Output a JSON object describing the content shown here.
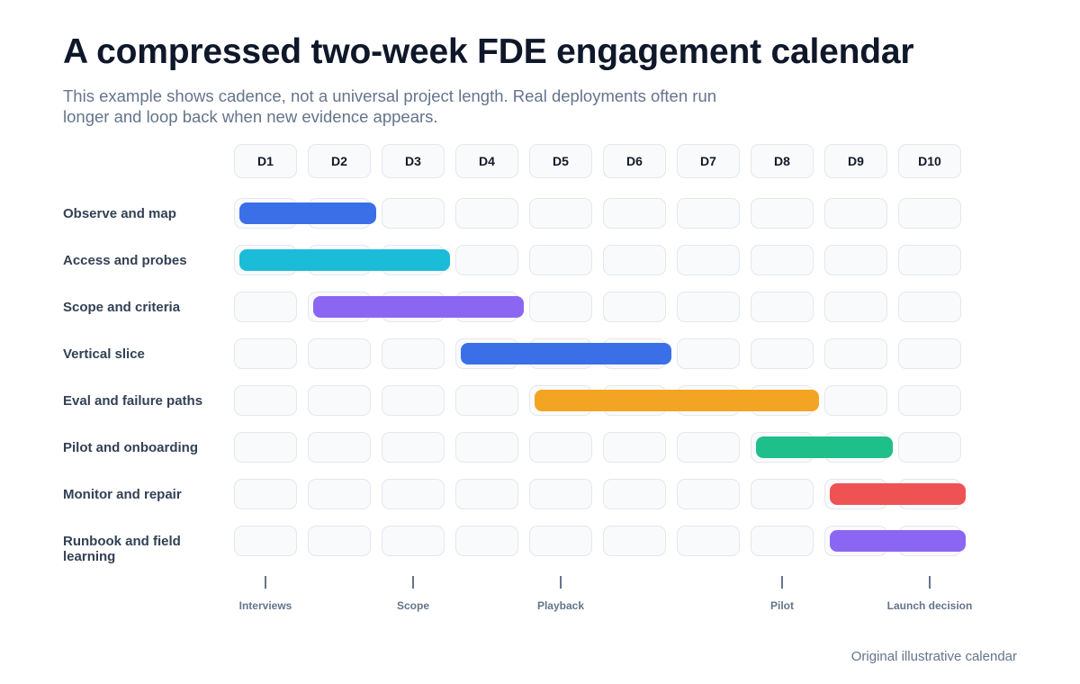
{
  "title": "A compressed two-week FDE engagement calendar",
  "subtitle": "This example shows cadence, not a universal project length. Real deployments often run longer and loop back when new evidence appears.",
  "days": [
    "D1",
    "D2",
    "D3",
    "D4",
    "D5",
    "D6",
    "D7",
    "D8",
    "D9",
    "D10"
  ],
  "tracks": [
    {
      "label": "Observe and map",
      "start_day": 1,
      "end_day": 2,
      "color": "#3b6fe8"
    },
    {
      "label": "Access and probes",
      "start_day": 1,
      "end_day": 3,
      "color": "#1bbcd8"
    },
    {
      "label": "Scope and criteria",
      "start_day": 2,
      "end_day": 4,
      "color": "#8b66f2"
    },
    {
      "label": "Vertical slice",
      "start_day": 4,
      "end_day": 6,
      "color": "#3b6fe8"
    },
    {
      "label": "Eval and failure paths",
      "start_day": 5,
      "end_day": 8,
      "color": "#f4a423"
    },
    {
      "label": "Pilot and onboarding",
      "start_day": 8,
      "end_day": 9,
      "color": "#1fbf8a"
    },
    {
      "label": "Monitor and repair",
      "start_day": 9,
      "end_day": 10,
      "color": "#ef5253"
    },
    {
      "label": "Runbook and field learning",
      "start_day": 9,
      "end_day": 10,
      "color": "#8b66f2"
    }
  ],
  "milestones": [
    {
      "label": "Interviews",
      "day": 1
    },
    {
      "label": "Scope",
      "day": 3
    },
    {
      "label": "Playback",
      "day": 5
    },
    {
      "label": "Pilot",
      "day": 8
    },
    {
      "label": "Launch decision",
      "day": 10
    }
  ],
  "footnote": "Original illustrative calendar"
}
